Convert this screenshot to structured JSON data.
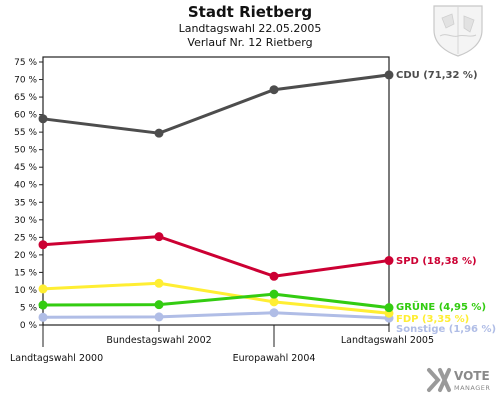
{
  "header": {
    "title": "Stadt Rietberg",
    "subtitle": "Landtagswahl 22.05.2005",
    "subtitle2": "Verlauf Nr. 12 Rietberg"
  },
  "logo": {
    "text": "VOTE",
    "subtext": "MANAGER"
  },
  "chart_data": {
    "type": "line",
    "ylim": [
      0,
      75
    ],
    "ytick_step": 5,
    "ytick_suffix": " %",
    "grid": false,
    "categories": [
      "Landtagswahl 2000",
      "Bundestagswahl 2002",
      "Europawahl 2004",
      "Landtagswahl 2005"
    ],
    "series": [
      {
        "name": "CDU",
        "label": "CDU (71,32 %)",
        "color": "#4d4d4d",
        "values": [
          58.8,
          54.7,
          67.1,
          71.32
        ]
      },
      {
        "name": "SPD",
        "label": "SPD (18,38 %)",
        "color": "#cc0033",
        "values": [
          22.9,
          25.2,
          13.9,
          18.38
        ]
      },
      {
        "name": "FDP",
        "label": "FDP (3,35 %)",
        "color": "#ffee33",
        "values": [
          10.3,
          11.9,
          6.6,
          3.35
        ]
      },
      {
        "name": "GRÜNE",
        "label": "GRÜNE (4,95 %)",
        "color": "#33cc11",
        "values": [
          5.7,
          5.8,
          8.8,
          4.95
        ]
      },
      {
        "name": "Sonstige",
        "label": "Sonstige (1,96 %)",
        "color": "#b0bde6",
        "values": [
          2.2,
          2.3,
          3.5,
          1.96
        ]
      }
    ]
  }
}
